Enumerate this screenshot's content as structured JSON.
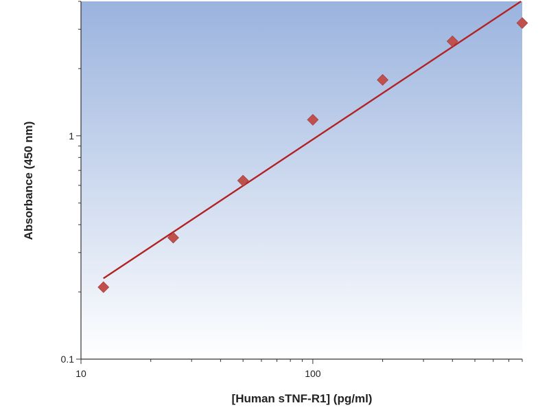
{
  "chart_data": {
    "type": "scatter",
    "title": "",
    "xlabel": "[Human sTNF-R1] (pg/ml)",
    "ylabel": "Absorbance (450 nm)",
    "x_scale": "log",
    "y_scale": "log",
    "xlim": [
      10,
      800
    ],
    "ylim": [
      0.1,
      4.0
    ],
    "x_ticks": [
      {
        "value": 10,
        "label": "10"
      },
      {
        "value": 100,
        "label": "100"
      }
    ],
    "y_ticks": [
      {
        "value": 0.1,
        "label": "0.1"
      },
      {
        "value": 1,
        "label": "1"
      }
    ],
    "grid": false,
    "legend": "none",
    "series": [
      {
        "kind": "points",
        "marker": "diamond",
        "color": "#c0504d",
        "x": [
          12.5,
          25,
          50,
          100,
          200,
          400,
          800
        ],
        "y": [
          0.21,
          0.35,
          0.63,
          1.18,
          1.78,
          2.65,
          3.2
        ]
      },
      {
        "kind": "fit-line",
        "color": "#b22222",
        "x": [
          12.5,
          790
        ],
        "y": [
          0.23,
          4.0
        ]
      }
    ],
    "colors": {
      "plot_bg_top": "#9ab3de",
      "plot_bg_bottom": "#ffffff",
      "axis": "#333333"
    }
  }
}
